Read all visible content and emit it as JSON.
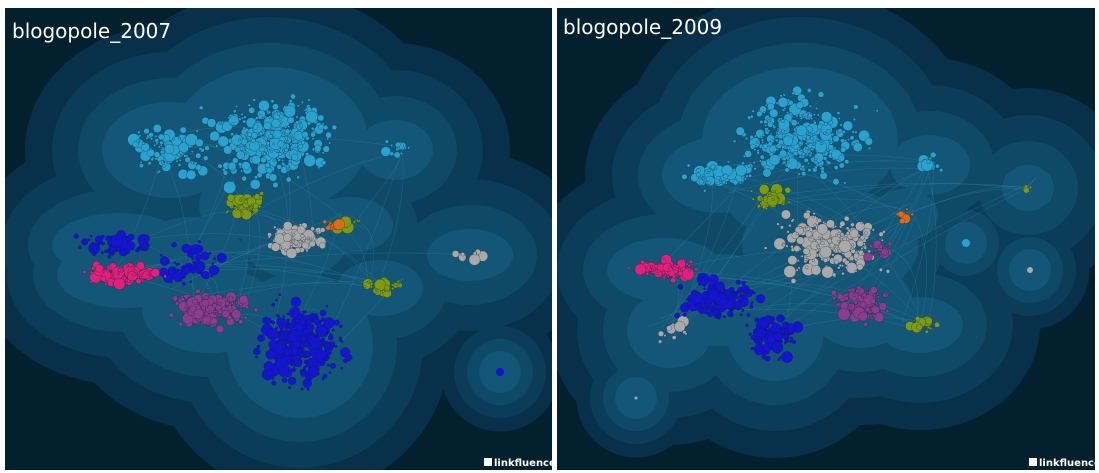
{
  "panels": [
    {
      "title": "blogopole_2007",
      "brand": "linkfluence"
    },
    {
      "title": "blogopole_2009",
      "brand": "linkfluence"
    }
  ]
}
